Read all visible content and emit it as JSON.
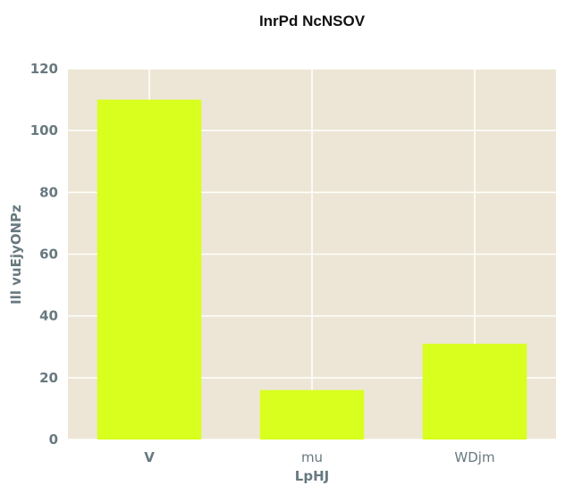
{
  "chart_data": {
    "type": "bar",
    "title": "InrPd  NcNSOV",
    "xlabel": "LpHJ",
    "ylabel": "Ill vuEjyONPz",
    "categories": [
      "V",
      "mu",
      "WDjm"
    ],
    "values": [
      110,
      16,
      31
    ],
    "ylim": [
      0,
      120
    ],
    "yticks": [
      0,
      20,
      40,
      60,
      80,
      100,
      120
    ],
    "grid": true,
    "colors": {
      "bar": "#d8ff1e",
      "plot_background": "#ede6d6",
      "grid": "#ffffff",
      "tick_text": "#687980"
    }
  }
}
